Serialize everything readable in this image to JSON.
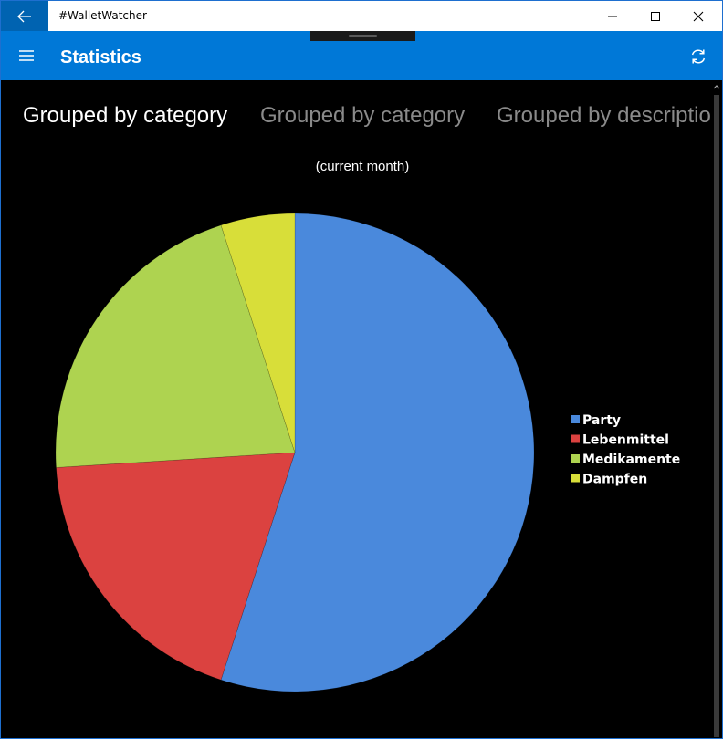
{
  "window": {
    "app_title": "#WalletWatcher"
  },
  "header": {
    "page_title": "Statistics"
  },
  "pivot": {
    "items": [
      {
        "label": "Grouped by category"
      },
      {
        "label": "Grouped by category"
      },
      {
        "label": "Grouped by descriptio"
      }
    ]
  },
  "chart_data": {
    "type": "pie",
    "subtitle": "(current month)",
    "slices": [
      {
        "label": "Party",
        "value": 55,
        "color": "#4a89dc"
      },
      {
        "label": "Lebenmittel",
        "value": 19,
        "color": "#db4240"
      },
      {
        "label": "Medikamente",
        "value": 21,
        "color": "#aed350"
      },
      {
        "label": "Dampfen",
        "value": 5,
        "color": "#d8de39"
      }
    ],
    "legend_position": "right"
  },
  "colors": {
    "accent": "#0078d7",
    "back_button": "#0063b1"
  },
  "icons": {
    "back": "back-arrow-icon",
    "menu": "hamburger-menu-icon",
    "refresh": "refresh-icon"
  }
}
